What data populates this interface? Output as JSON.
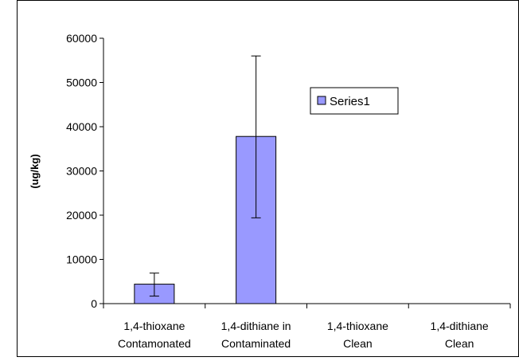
{
  "chart_data": {
    "type": "bar",
    "categories": [
      [
        "1,4-thioxane",
        "Contamonated"
      ],
      [
        "1,4-dithiane in",
        "Contaminated"
      ],
      [
        "1,4-thioxane",
        "Clean"
      ],
      [
        "1,4-dithiane",
        "Clean"
      ]
    ],
    "series": [
      {
        "name": "Series1",
        "values": [
          4400,
          37800,
          0,
          0
        ],
        "error_low": [
          1700,
          19400,
          null,
          null
        ],
        "error_high": [
          6900,
          56000,
          null,
          null
        ]
      }
    ],
    "ylabel": "(ug/kg)",
    "ylim": [
      0,
      60000
    ],
    "yticks": [
      0,
      10000,
      20000,
      30000,
      40000,
      50000,
      60000
    ],
    "grid": false,
    "legend_position": "top-right",
    "colors": {
      "bar_fill": "#9999ff",
      "bar_stroke": "#000000",
      "axis": "#000000",
      "border": "#000000"
    }
  }
}
